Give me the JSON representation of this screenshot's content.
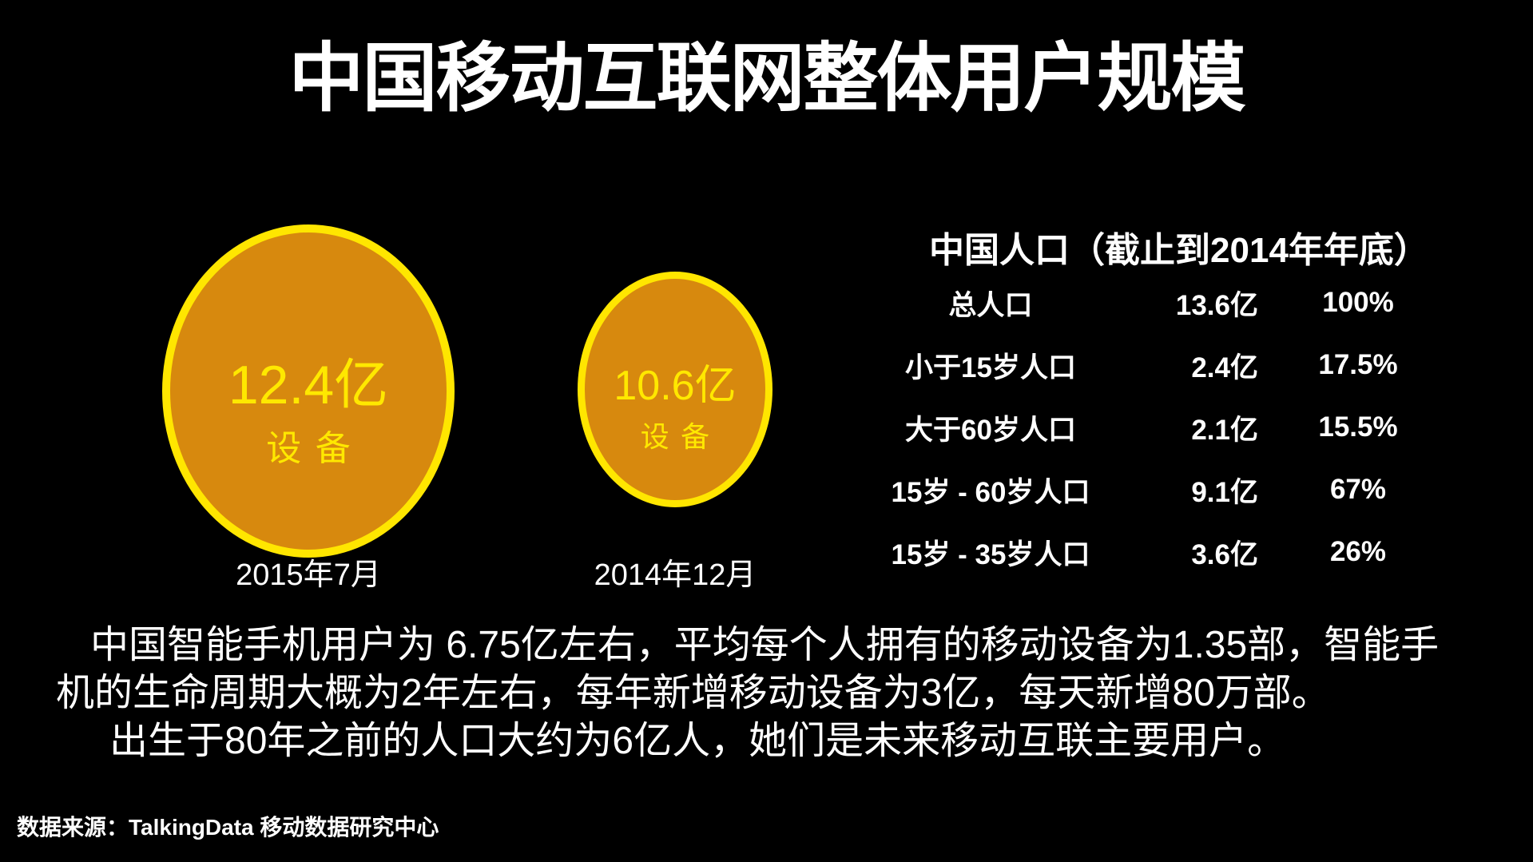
{
  "slide": {
    "title": "中国移动互联网整体用户规模",
    "source_note": "数据来源：TalkingData 移动数据研究中心",
    "colors": {
      "background": "#000000",
      "text": "#FFFFFF",
      "bubble_fill": "#D7890E",
      "bubble_border": "#FFE600",
      "bubble_text": "#FFE800"
    }
  },
  "bubbles": [
    {
      "value": "12.4亿",
      "unit": "设备",
      "date": "2015年7月"
    },
    {
      "value": "10.6亿",
      "unit": "设备",
      "date": "2014年12月"
    }
  ],
  "population_table": {
    "title": "中国人口（截止到2014年年底）",
    "rows": [
      {
        "label": "总人口",
        "value": "13.6亿",
        "percent": "100%"
      },
      {
        "label": "小于15岁人口",
        "value": "2.4亿",
        "percent": "17.5%"
      },
      {
        "label": "大于60岁人口",
        "value": "2.1亿",
        "percent": "15.5%"
      },
      {
        "label": "15岁 - 60岁人口",
        "value": "9.1亿",
        "percent": "67%"
      },
      {
        "label": "15岁 - 35岁人口",
        "value": "3.6亿",
        "percent": "26%"
      }
    ]
  },
  "summary": {
    "lines": [
      "中国智能手机用户为 6.75亿左右，平均每个人拥有的移动设备为1.35部，智能手",
      "机的生命周期大概为2年左右，每年新增移动设备为3亿，每天新增80万部。",
      "出生于80年之前的人口大约为6亿人，她们是未来移动互联主要用户。"
    ]
  },
  "chart_data": {
    "type": "bubble",
    "title": "中国移动互联网整体用户规模",
    "series": [
      {
        "label": "2015年7月",
        "metric": "设备",
        "value_yi": 12.4
      },
      {
        "label": "2014年12月",
        "metric": "设备",
        "value_yi": 10.6
      }
    ],
    "table": {
      "title": "中国人口（截止到2014年年底）",
      "rows": [
        [
          "总人口",
          "13.6亿",
          "100%"
        ],
        [
          "小于15岁人口",
          "2.4亿",
          "17.5%"
        ],
        [
          "大于60岁人口",
          "2.1亿",
          "15.5%"
        ],
        [
          "15岁 - 60岁人口",
          "9.1亿",
          "67%"
        ],
        [
          "15岁 - 35岁人口",
          "3.6亿",
          "26%"
        ]
      ]
    }
  }
}
